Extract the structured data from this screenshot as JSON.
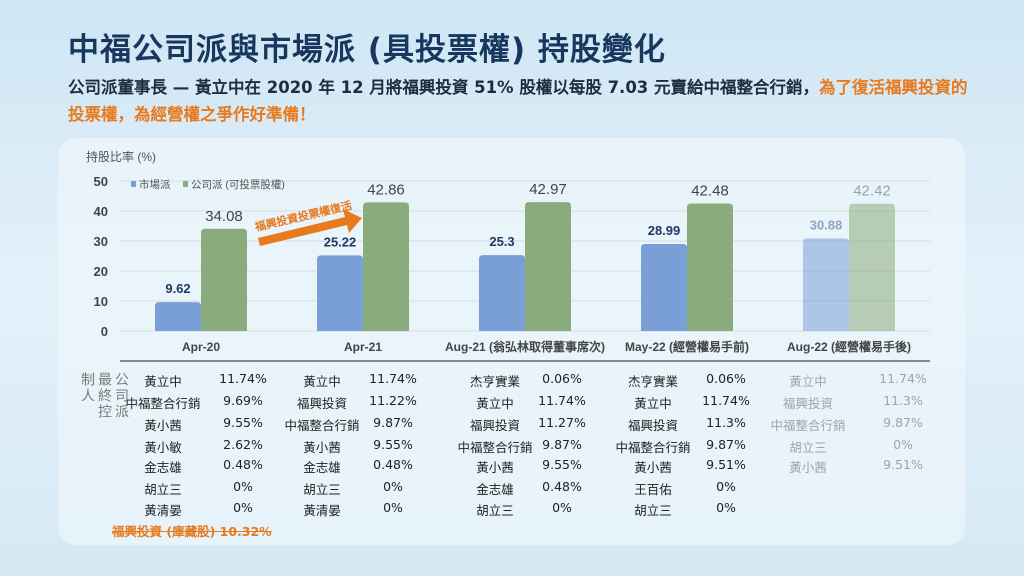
{
  "header": {
    "title": "中福公司派與市場派 (具投票權) 持股變化",
    "subtitle_normal": "公司派董事長 — 黃立中在 2020 年 12 月將福興投資 51% 股權以每股 7.03 元賣給中福整合行銷，",
    "subtitle_highlight": "為了復活福興投資的投票權，為經營權之爭作好準備！"
  },
  "colors": {
    "market": "#7a9fd6",
    "company": "#8aac7c",
    "accent": "#e87a1e",
    "title": "#17375e"
  },
  "chart_data": {
    "type": "bar",
    "ylabel": "持股比率 (%)",
    "ylim": [
      0,
      50
    ],
    "yticks": [
      0,
      10,
      20,
      30,
      40,
      50
    ],
    "categories": [
      "Apr-20",
      "Apr-21",
      "Aug-21 (翁弘林取得董事席次)",
      "May-22 (經營權易手前)",
      "Aug-22 (經營權易手後)"
    ],
    "series": [
      {
        "name": "市場派",
        "values": [
          9.62,
          25.22,
          25.3,
          28.99,
          30.88
        ]
      },
      {
        "name": "公司派 (可投票股權)",
        "values": [
          34.08,
          42.86,
          42.97,
          42.48,
          42.42
        ]
      }
    ],
    "legend": "top-left",
    "annotation": "福興投資投票權復活",
    "faded_category_index": 4
  },
  "table": {
    "row_label": "公司派最終控制人",
    "columns": [
      [
        [
          "黃立中",
          "11.74%"
        ],
        [
          "中福整合行銷",
          "9.69%"
        ],
        [
          "黃小茜",
          "9.55%"
        ],
        [
          "黃小敏",
          "2.62%"
        ],
        [
          "金志雄",
          "0.48%"
        ],
        [
          "胡立三",
          "0%"
        ],
        [
          "黃清晏",
          "0%"
        ]
      ],
      [
        [
          "黃立中",
          "11.74%"
        ],
        [
          "福興投資",
          "11.22%"
        ],
        [
          "中福整合行銷",
          "9.87%"
        ],
        [
          "黃小茜",
          "9.55%"
        ],
        [
          "金志雄",
          "0.48%"
        ],
        [
          "胡立三",
          "0%"
        ],
        [
          "黃清晏",
          "0%"
        ]
      ],
      [
        [
          "杰亨實業",
          "0.06%"
        ],
        [
          "黃立中",
          "11.74%"
        ],
        [
          "福興投資",
          "11.27%"
        ],
        [
          "中福整合行銷",
          "9.87%"
        ],
        [
          "黃小茜",
          "9.55%"
        ],
        [
          "金志雄",
          "0.48%"
        ],
        [
          "胡立三",
          "0%"
        ]
      ],
      [
        [
          "杰亨實業",
          "0.06%"
        ],
        [
          "黃立中",
          "11.74%"
        ],
        [
          "福興投資",
          "11.3%"
        ],
        [
          "中福整合行銷",
          "9.87%"
        ],
        [
          "黃小茜",
          "9.51%"
        ],
        [
          "王百佑",
          "0%"
        ],
        [
          "胡立三",
          "0%"
        ]
      ],
      [
        [
          "黃立中",
          "11.74%"
        ],
        [
          "福興投資",
          "11.3%"
        ],
        [
          "中福整合行銷",
          "9.87%"
        ],
        [
          "胡立三",
          "0%"
        ],
        [
          "黃小茜",
          "9.51%"
        ]
      ]
    ],
    "struck_note": "福興投資 (庫藏股)  10.32%"
  }
}
